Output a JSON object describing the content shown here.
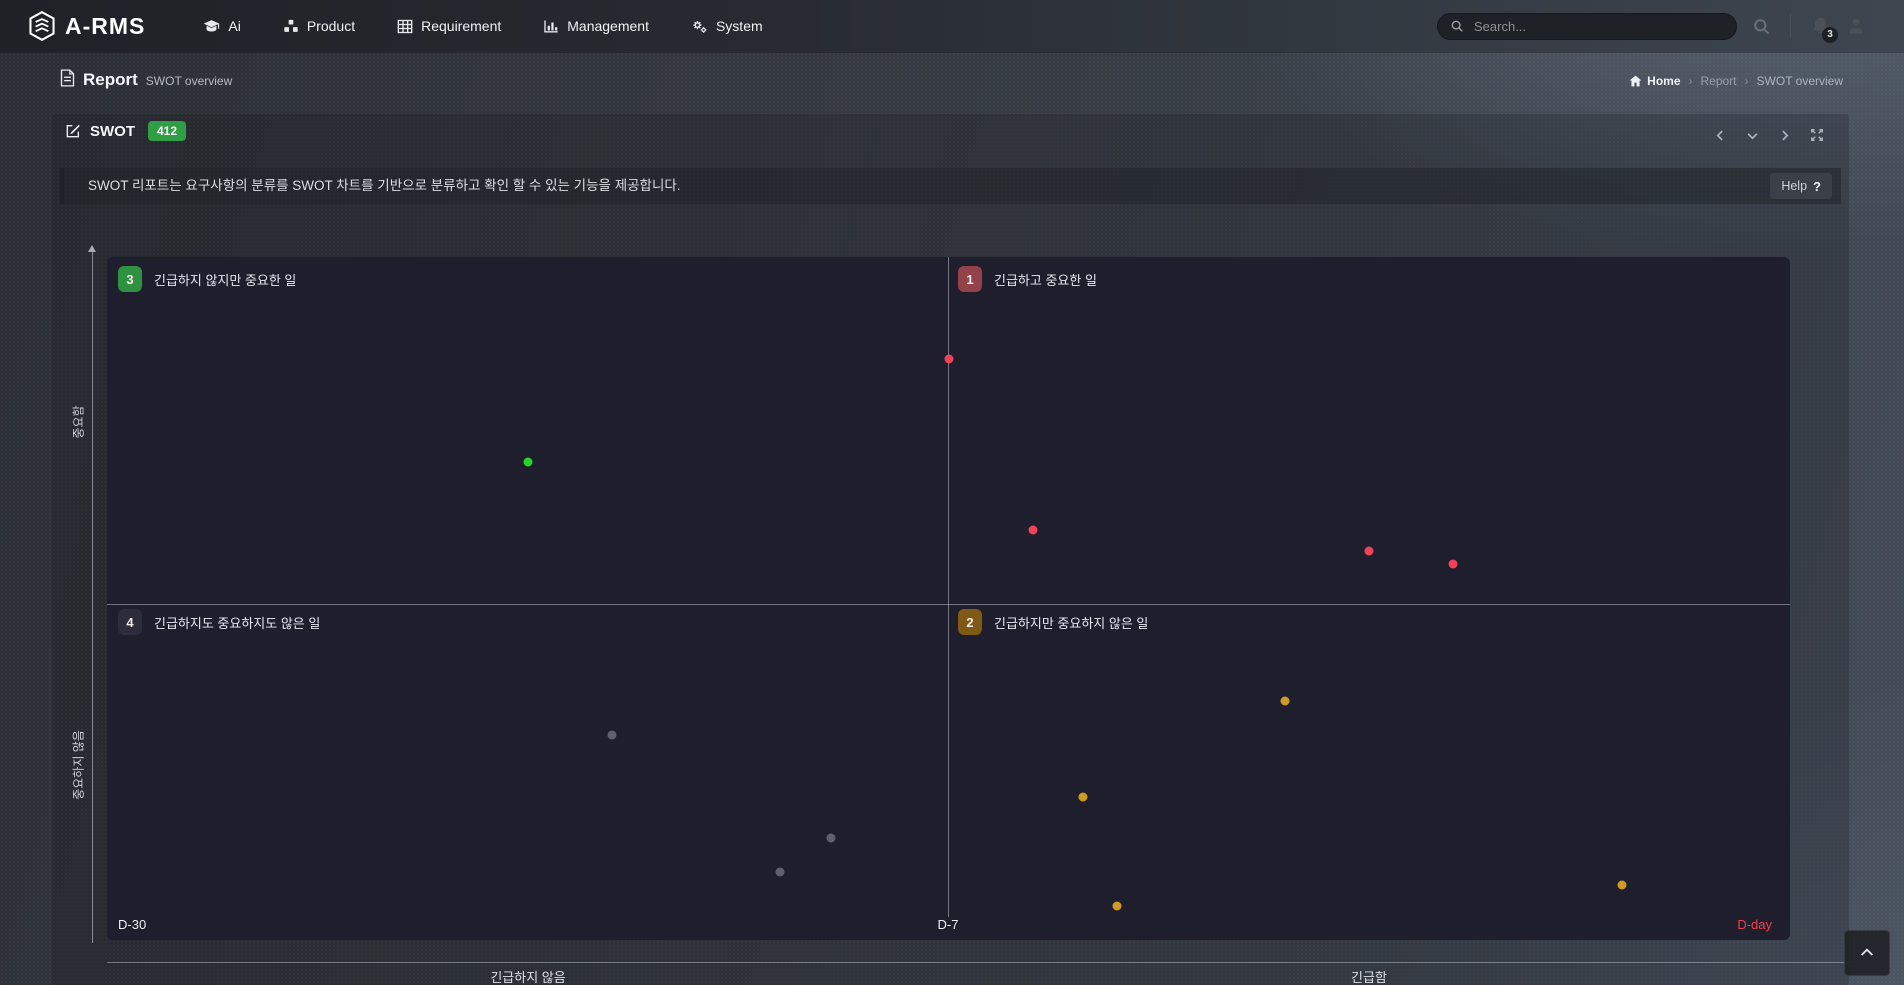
{
  "navbar": {
    "brand": "A-RMS",
    "items": [
      {
        "label": "Ai",
        "icon": "graduation-cap-icon"
      },
      {
        "label": "Product",
        "icon": "cubes-icon"
      },
      {
        "label": "Requirement",
        "icon": "grid-icon"
      },
      {
        "label": "Management",
        "icon": "bar-chart-icon"
      },
      {
        "label": "System",
        "icon": "gears-icon"
      }
    ],
    "search_placeholder": "Search...",
    "notification_count": "3"
  },
  "page_header": {
    "title": "Report",
    "subtitle": "SWOT overview",
    "breadcrumb": [
      "Home",
      "Report",
      "SWOT overview"
    ],
    "separator": "›"
  },
  "panel": {
    "title": "SWOT",
    "count": "412",
    "description": "SWOT 리포트는 요구사항의 분류를 SWOT 차트를 기반으로 분류하고 확인 할 수 있는 기능을 제공합니다.",
    "help_label": "Help",
    "help_mark": "?"
  },
  "chart_data": {
    "type": "scatter",
    "title": "SWOT quadrant chart (urgency x importance)",
    "x_axis": {
      "tick_labels": [
        "D-30",
        "D-7",
        "D-day"
      ],
      "left_caption": "긴급하지 않음",
      "right_caption": "긴급함",
      "range_note": "D-30 at left edge, D-7 at center divider, D-day at right edge"
    },
    "y_axis": {
      "top_caption": "중요함",
      "bottom_caption": "중요하지 않음"
    },
    "grid": "2x2 quadrant dividers only",
    "quadrants": [
      {
        "num": "3",
        "label": "긴급하지 않지만 중요한 일",
        "badge_color": "#2d9140",
        "position": "top-left"
      },
      {
        "num": "1",
        "label": "긴급하고 중요한 일",
        "badge_color": "#94424a",
        "position": "top-right"
      },
      {
        "num": "4",
        "label": "긴급하지도 중요하지도 않은 일",
        "badge_color": "#2c2c3a",
        "position": "bottom-left"
      },
      {
        "num": "2",
        "label": "긴급하지만 중요하지 않은 일",
        "badge_color": "#7f5a14",
        "position": "bottom-right"
      }
    ],
    "colors": {
      "red": "#f0435a",
      "green": "#27d52a",
      "gray": "#5f626e",
      "orange": "#cf9b22",
      "dday": "#f0404f"
    },
    "points": [
      {
        "x_pct": 50,
        "y_pct": 15,
        "color": "red",
        "quadrant": 1
      },
      {
        "x_pct": 55,
        "y_pct": 40,
        "color": "red",
        "quadrant": 1
      },
      {
        "x_pct": 75,
        "y_pct": 43,
        "color": "red",
        "quadrant": 1
      },
      {
        "x_pct": 80,
        "y_pct": 45,
        "color": "red",
        "quadrant": 1
      },
      {
        "x_pct": 25,
        "y_pct": 30,
        "color": "green",
        "quadrant": 3
      },
      {
        "x_pct": 30,
        "y_pct": 70,
        "color": "gray",
        "quadrant": 4
      },
      {
        "x_pct": 43,
        "y_pct": 85,
        "color": "gray",
        "quadrant": 4
      },
      {
        "x_pct": 40,
        "y_pct": 90,
        "color": "gray",
        "quadrant": 4
      },
      {
        "x_pct": 70,
        "y_pct": 65,
        "color": "orange",
        "quadrant": 2
      },
      {
        "x_pct": 58,
        "y_pct": 79,
        "color": "orange",
        "quadrant": 2
      },
      {
        "x_pct": 60,
        "y_pct": 95,
        "color": "orange",
        "quadrant": 2
      },
      {
        "x_pct": 90,
        "y_pct": 92,
        "color": "orange",
        "quadrant": 2
      }
    ]
  }
}
